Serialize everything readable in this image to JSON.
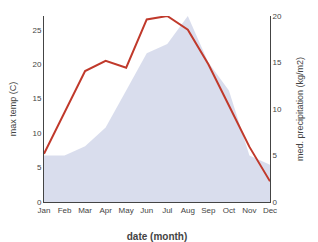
{
  "chart_data": {
    "type": "line",
    "categories": [
      "Jan",
      "Feb",
      "Mar",
      "Apr",
      "May",
      "Jun",
      "Jul",
      "Aug",
      "Sep",
      "Oct",
      "Nov",
      "Dec"
    ],
    "xlabel": "date (month)",
    "ylabel": "max temp (C)",
    "y2label": "med. precipitation (kg/m2)",
    "series": [
      {
        "type": "area",
        "axis": "y2",
        "color": "#aab4d8",
        "values": [
          5,
          5,
          6,
          8,
          12,
          16,
          17,
          20,
          15,
          12,
          5,
          4
        ]
      },
      {
        "type": "line",
        "color": "#c0392b",
        "values": [
          7,
          13,
          19,
          20.5,
          19.5,
          26.5,
          27,
          25,
          20,
          14,
          8,
          3
        ]
      }
    ],
    "ylim": [
      0,
      27
    ],
    "yticks": [
      0,
      5,
      10,
      15,
      20,
      25
    ],
    "y2lim": [
      0,
      20
    ],
    "y2ticks": [
      0,
      5,
      10,
      15,
      20
    ],
    "grid": false
  }
}
